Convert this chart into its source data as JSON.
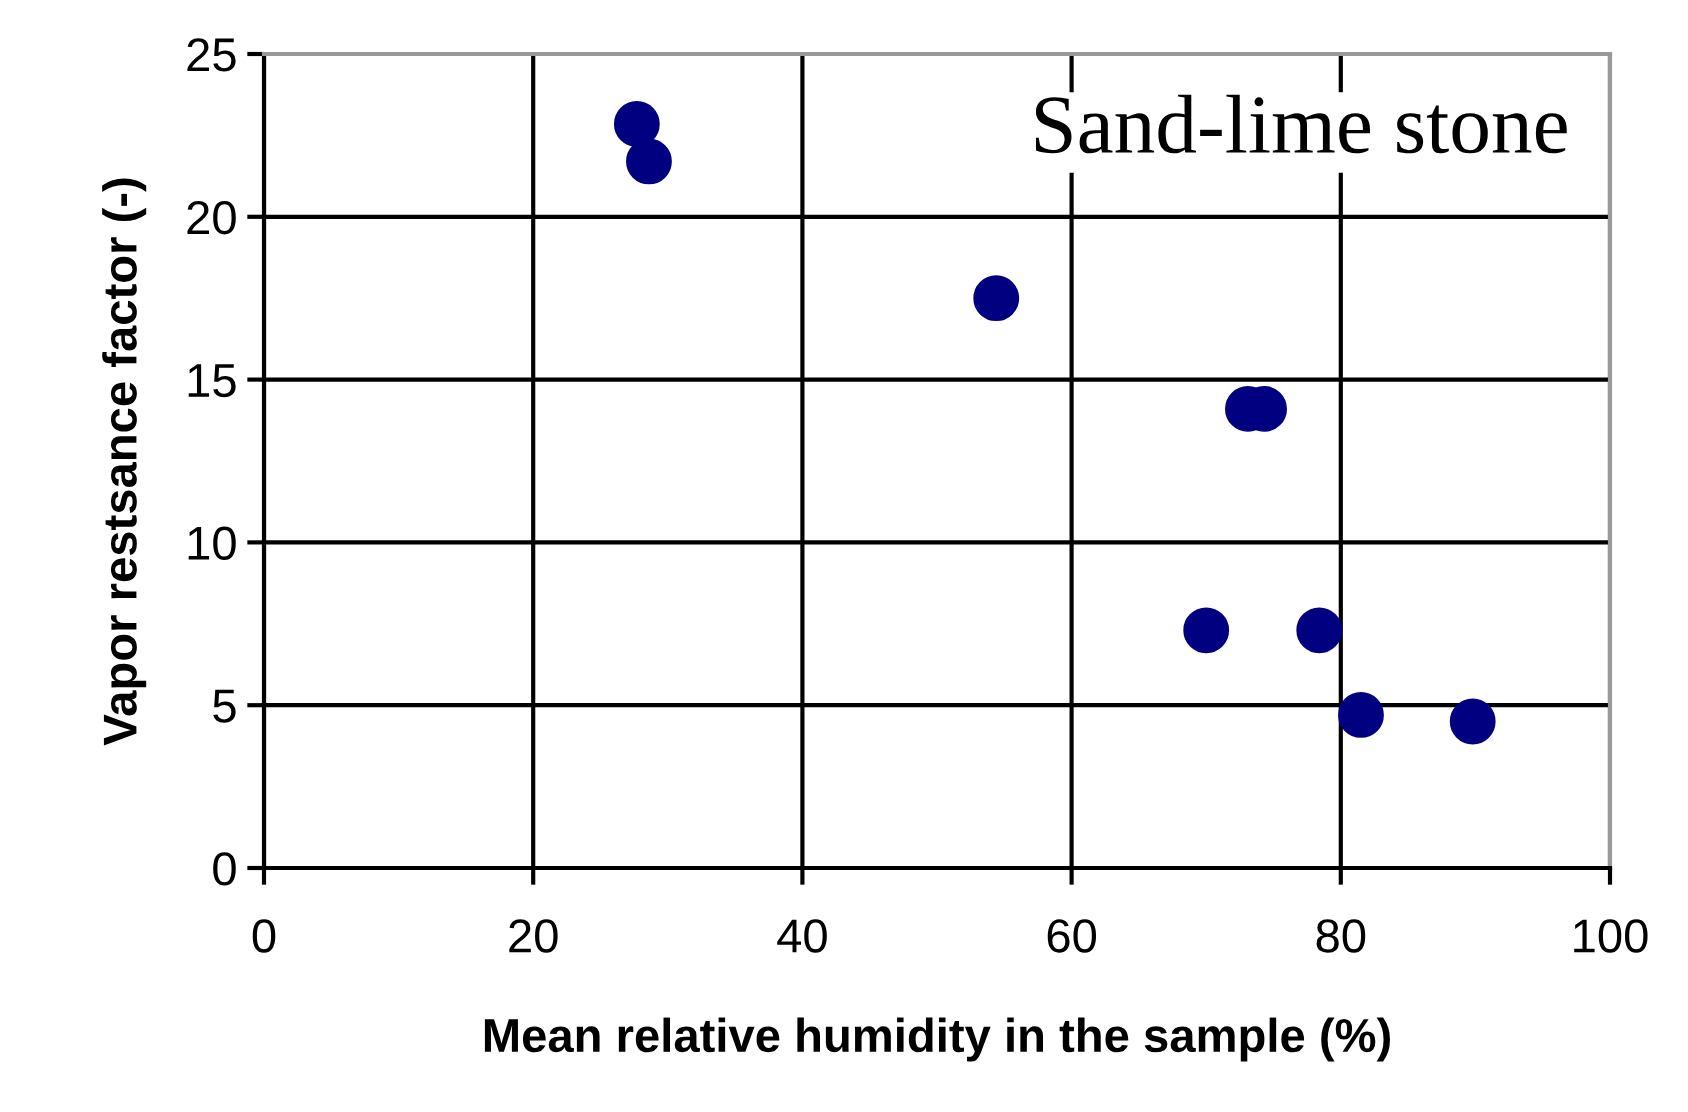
{
  "chart_data": {
    "type": "scatter",
    "xlabel": "Mean relative humidity in the sample (%)",
    "ylabel": "Vapor restsance factor (-)",
    "annotations": [
      "Sand-lime stone"
    ],
    "series": [
      {
        "color": "#000080",
        "x": [
          27.7,
          28.6,
          54.4,
          73.1,
          74.3,
          70.0,
          78.4,
          81.5,
          89.8
        ],
        "values": [
          22.85,
          21.7,
          17.5,
          14.1,
          14.1,
          7.3,
          7.3,
          4.7,
          4.5
        ]
      }
    ],
    "xlim": [
      0,
      100
    ],
    "xticks": [
      0,
      20,
      40,
      60,
      80,
      100
    ],
    "ylim": [
      0,
      25
    ],
    "yticks": [
      0,
      5,
      10,
      15,
      20,
      25
    ],
    "grid": true,
    "marker": "circle",
    "legend": false
  }
}
